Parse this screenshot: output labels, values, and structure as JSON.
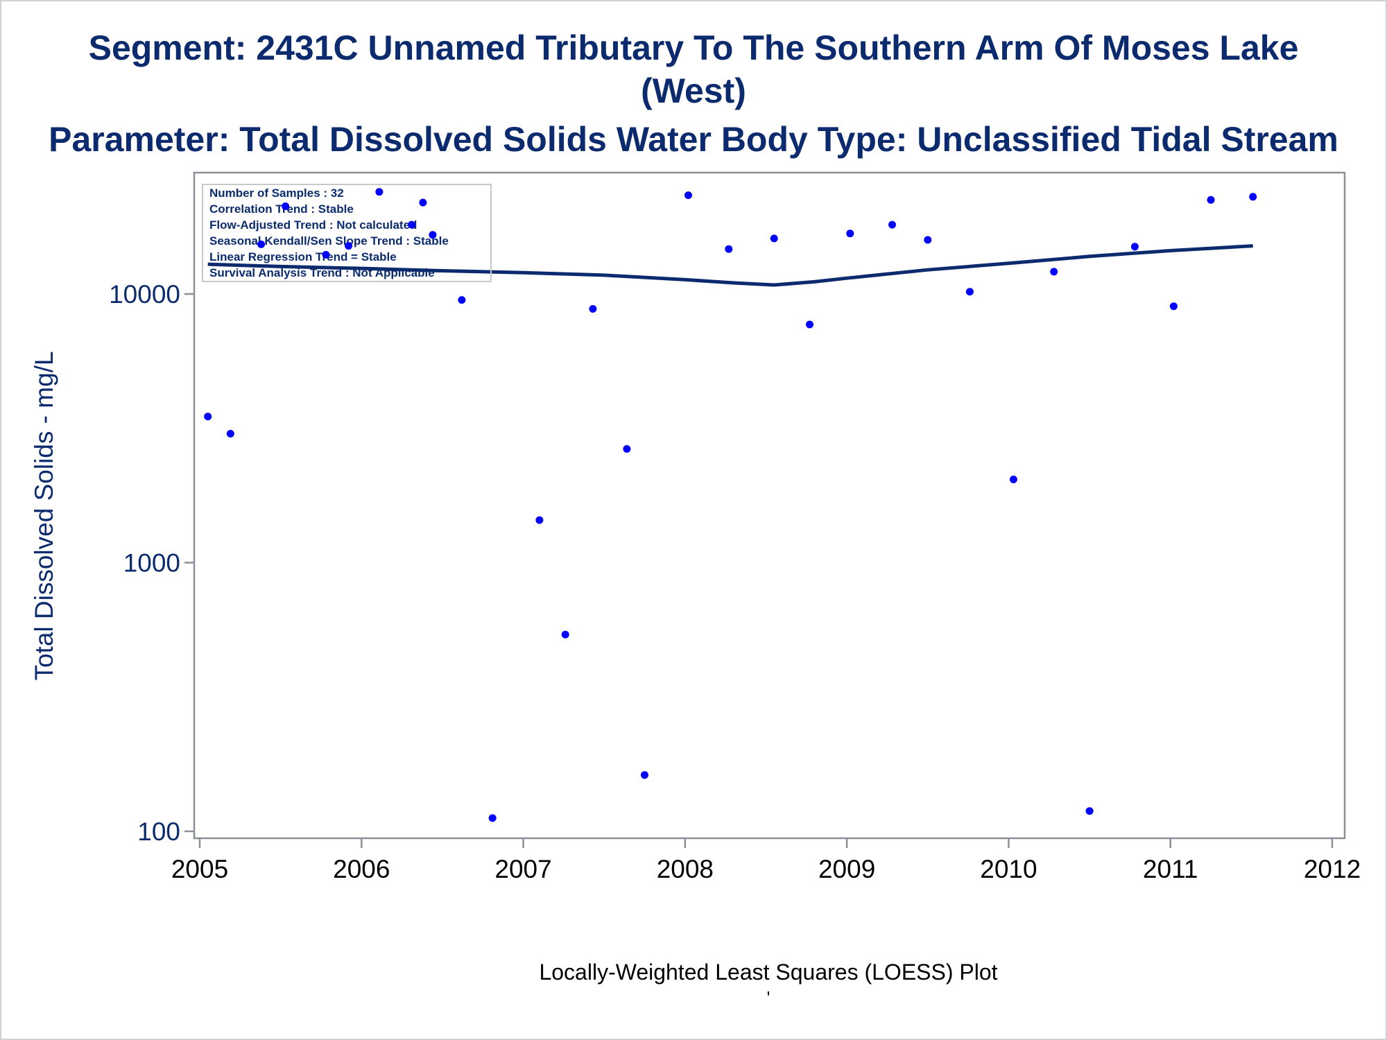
{
  "title_line1": "Segment: 2431C  Unnamed Tributary To The Southern Arm Of Moses Lake (West)",
  "title_line2": "Parameter: Total Dissolved Solids   Water Body Type: Unclassified Tidal Stream",
  "footnote": "Locally-Weighted Least Squares (LOESS) Plot",
  "footnote_mark": "'",
  "colors": {
    "text": "#0b2b6e",
    "points": "#0000ff",
    "loess_line": "#0b2b6e",
    "frame": "#8a8f96"
  },
  "chart_data": {
    "type": "scatter",
    "title": "Segment: 2431C  Unnamed Tributary To The Southern Arm Of Moses Lake (West) / Parameter: Total Dissolved Solids   Water Body Type: Unclassified Tidal Stream",
    "xlabel": "",
    "ylabel": "Total Dissolved Solids - mg/L",
    "y_scale": "log",
    "xlim": [
      2005,
      2012
    ],
    "ylim": [
      100,
      24000
    ],
    "x_ticks": [
      "2005",
      "2006",
      "2007",
      "2008",
      "2009",
      "2010",
      "2011",
      "2012"
    ],
    "y_ticks": [
      "100",
      "1000",
      "10000"
    ],
    "grid": false,
    "legend": "none",
    "stats_box": {
      "position": "top-left",
      "lines": [
        "Number of Samples : 32",
        "Correlation Trend : Stable",
        "Flow-Adjusted Trend : Not calculated",
        "Seasonal Kendall/Sen Slope Trend : Stable",
        "Linear Regression Trend = Stable",
        "Survival Analysis Trend : Not Applicable"
      ]
    },
    "series": [
      {
        "name": "",
        "kind": "points",
        "points": [
          [
            2005.05,
            3500
          ],
          [
            2005.19,
            3020
          ],
          [
            2005.38,
            15300
          ],
          [
            2005.53,
            21200
          ],
          [
            2005.78,
            14000
          ],
          [
            2005.92,
            15100
          ],
          [
            2006.11,
            24000
          ],
          [
            2006.31,
            18100
          ],
          [
            2006.38,
            21900
          ],
          [
            2006.44,
            16600
          ],
          [
            2006.62,
            9500
          ],
          [
            2006.81,
            112
          ],
          [
            2007.1,
            1440
          ],
          [
            2007.26,
            540
          ],
          [
            2007.43,
            8800
          ],
          [
            2007.64,
            2650
          ],
          [
            2007.75,
            162
          ],
          [
            2008.02,
            23300
          ],
          [
            2008.27,
            14700
          ],
          [
            2008.55,
            16100
          ],
          [
            2008.77,
            7700
          ],
          [
            2009.02,
            16800
          ],
          [
            2009.28,
            18100
          ],
          [
            2009.5,
            15900
          ],
          [
            2009.76,
            10200
          ],
          [
            2010.03,
            2040
          ],
          [
            2010.28,
            12100
          ],
          [
            2010.5,
            119
          ],
          [
            2010.78,
            15000
          ],
          [
            2011.02,
            9000
          ],
          [
            2011.25,
            22400
          ],
          [
            2011.51,
            23000
          ]
        ]
      },
      {
        "name": "",
        "kind": "line",
        "points": [
          [
            2005.05,
            12900
          ],
          [
            2005.5,
            12650
          ],
          [
            2006.0,
            12450
          ],
          [
            2006.5,
            12200
          ],
          [
            2007.0,
            12000
          ],
          [
            2007.5,
            11750
          ],
          [
            2008.0,
            11300
          ],
          [
            2008.3,
            11000
          ],
          [
            2008.55,
            10800
          ],
          [
            2008.8,
            11100
          ],
          [
            2009.0,
            11450
          ],
          [
            2009.5,
            12300
          ],
          [
            2010.0,
            13000
          ],
          [
            2010.5,
            13800
          ],
          [
            2011.0,
            14500
          ],
          [
            2011.51,
            15100
          ]
        ]
      }
    ]
  }
}
